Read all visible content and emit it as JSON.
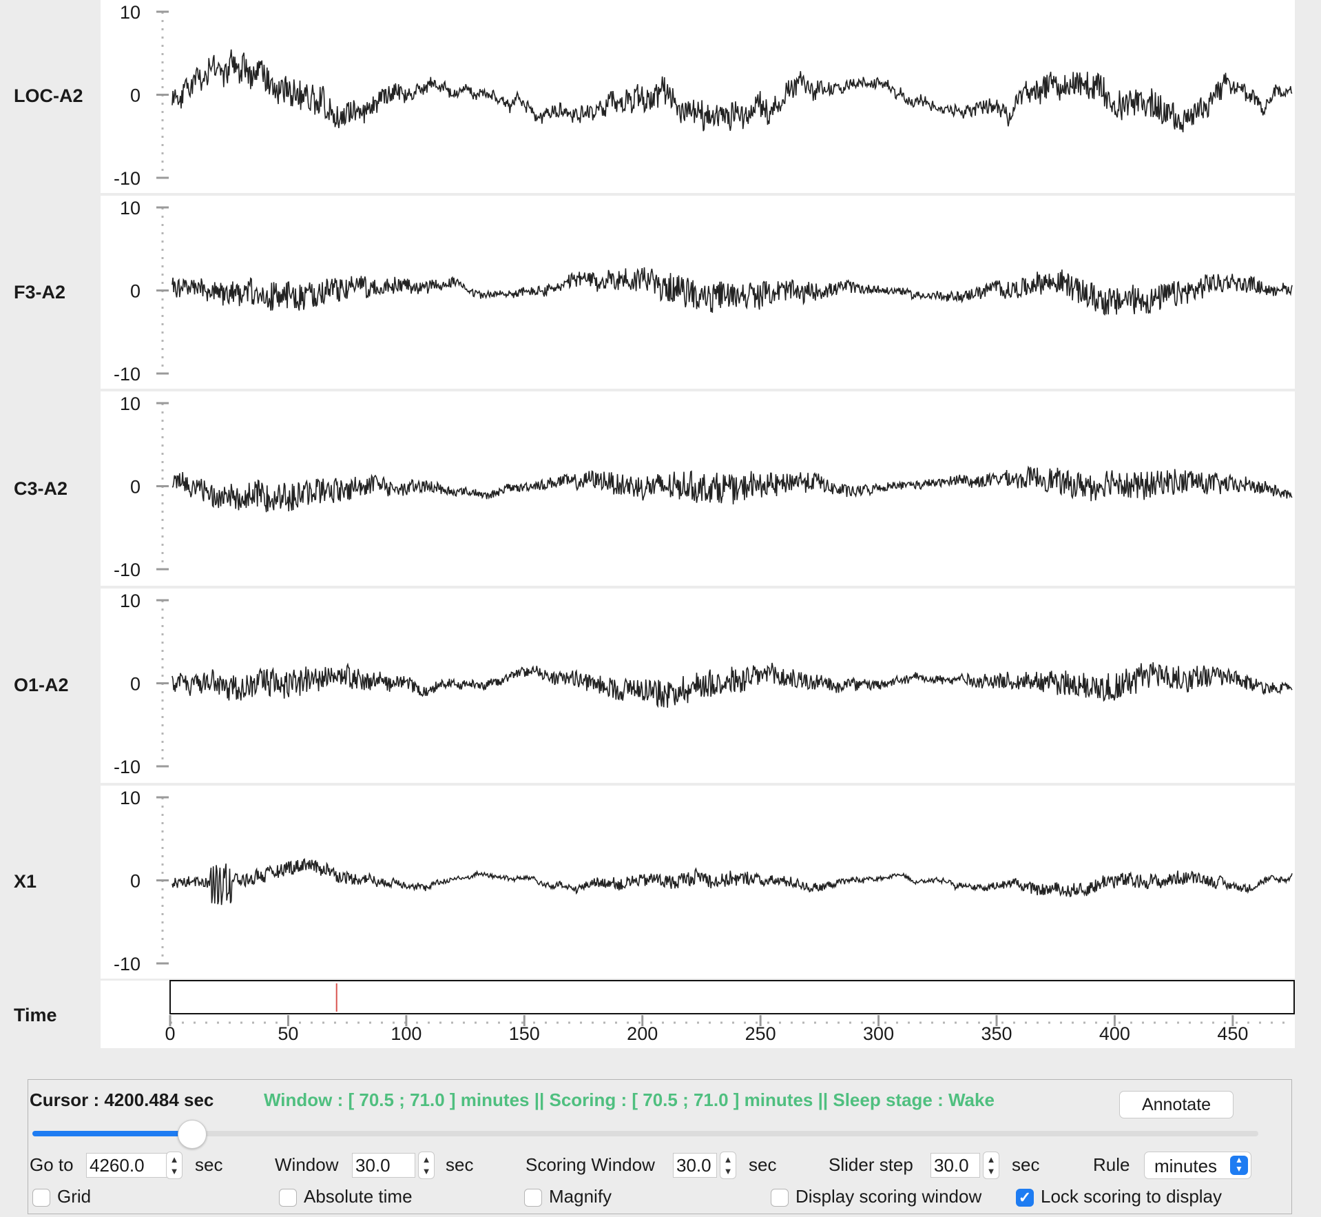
{
  "axis": {
    "y_ticks": [
      "10",
      "0",
      "-10"
    ],
    "ylim": [
      -10,
      10
    ]
  },
  "channels": [
    {
      "name": "LOC-A2"
    },
    {
      "name": "F3-A2"
    },
    {
      "name": "C3-A2"
    },
    {
      "name": "O1-A2"
    },
    {
      "name": "X1"
    }
  ],
  "time_panel": {
    "label": "Time",
    "ticks": [
      "0",
      "50",
      "100",
      "150",
      "200",
      "250",
      "300",
      "350",
      "400",
      "450"
    ],
    "xlim": [
      0,
      476
    ],
    "cursor_marker": 70.5,
    "marker_color": "#d9534f"
  },
  "controls": {
    "cursor_text": "Cursor : 4200.484 sec",
    "status_text": "Window : [ 70.5 ; 71.0 ] minutes || Scoring : [ 70.5 ; 71.0 ] minutes || Sleep stage :      Wake",
    "annotate_label": "Annotate",
    "slider_position": 0.13,
    "goto": {
      "label": "Go to",
      "value": "4260.0",
      "unit": "sec"
    },
    "window": {
      "label": "Window",
      "value": "30.0",
      "unit": "sec"
    },
    "scoring_window": {
      "label": "Scoring Window",
      "value": "30.0",
      "unit": "sec"
    },
    "slider_step": {
      "label": "Slider step",
      "value": "30.0",
      "unit": "sec"
    },
    "rule": {
      "label": "Rule",
      "value": "minutes"
    },
    "checkboxes": [
      {
        "label": "Grid",
        "checked": false
      },
      {
        "label": "Absolute time",
        "checked": false
      },
      {
        "label": "Magnify",
        "checked": false
      },
      {
        "label": "Display scoring window",
        "checked": false
      },
      {
        "label": "Lock scoring to display",
        "checked": true
      }
    ]
  },
  "colors": {
    "accent": "#1e7cf2",
    "status": "#4fbf7f",
    "trace": "#222222"
  }
}
